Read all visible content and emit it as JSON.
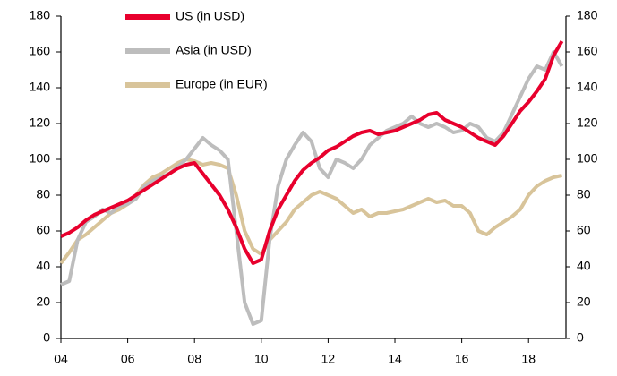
{
  "chart_data": {
    "type": "line",
    "x": [
      2004,
      2004.25,
      2004.5,
      2004.75,
      2005,
      2005.25,
      2005.5,
      2005.75,
      2006,
      2006.25,
      2006.5,
      2006.75,
      2007,
      2007.25,
      2007.5,
      2007.75,
      2008,
      2008.25,
      2008.5,
      2008.75,
      2009,
      2009.25,
      2009.5,
      2009.75,
      2010,
      2010.25,
      2010.5,
      2010.75,
      2011,
      2011.25,
      2011.5,
      2011.75,
      2012,
      2012.25,
      2012.5,
      2012.75,
      2013,
      2013.25,
      2013.5,
      2013.75,
      2014,
      2014.25,
      2014.5,
      2014.75,
      2015,
      2015.25,
      2015.5,
      2015.75,
      2016,
      2016.25,
      2016.5,
      2016.75,
      2017,
      2017.25,
      2017.5,
      2017.75,
      2018,
      2018.25,
      2018.5,
      2018.75,
      2019
    ],
    "series": [
      {
        "name": "US (in USD)",
        "color": "#e8002d",
        "values": [
          57,
          59,
          62,
          66,
          69,
          71,
          73,
          75,
          77,
          80,
          83,
          86,
          89,
          92,
          95,
          97,
          98,
          92,
          86,
          80,
          72,
          62,
          50,
          42,
          44,
          60,
          72,
          80,
          88,
          94,
          98,
          101,
          105,
          107,
          110,
          113,
          115,
          116,
          114,
          115,
          116,
          118,
          120,
          122,
          125,
          126,
          122,
          120,
          118,
          115,
          112,
          110,
          108,
          113,
          120,
          127,
          132,
          138,
          145,
          158,
          166
        ]
      },
      {
        "name": "Asia (in USD)",
        "color": "#bdbdbd",
        "values": [
          30,
          32,
          55,
          65,
          68,
          72,
          70,
          74,
          75,
          78,
          85,
          88,
          90,
          92,
          96,
          100,
          106,
          112,
          108,
          105,
          100,
          60,
          20,
          8,
          10,
          55,
          85,
          100,
          108,
          115,
          110,
          95,
          90,
          100,
          98,
          95,
          100,
          108,
          112,
          116,
          118,
          120,
          124,
          120,
          118,
          120,
          118,
          115,
          116,
          120,
          118,
          112,
          110,
          115,
          125,
          135,
          145,
          152,
          150,
          160,
          152
        ]
      },
      {
        "name": "Europe (in EUR)",
        "color": "#d8c49a",
        "values": [
          42,
          48,
          55,
          58,
          62,
          66,
          70,
          72,
          75,
          80,
          86,
          90,
          92,
          95,
          98,
          100,
          99,
          97,
          98,
          97,
          95,
          80,
          60,
          50,
          47,
          55,
          60,
          65,
          72,
          76,
          80,
          82,
          80,
          78,
          74,
          70,
          72,
          68,
          70,
          70,
          71,
          72,
          74,
          76,
          78,
          76,
          77,
          74,
          74,
          70,
          60,
          58,
          62,
          65,
          68,
          72,
          80,
          85,
          88,
          90,
          91
        ]
      }
    ],
    "xlim": [
      2004,
      2019.12
    ],
    "xticks": [
      {
        "value": 2004,
        "label": "04"
      },
      {
        "value": 2006,
        "label": "06"
      },
      {
        "value": 2008,
        "label": "08"
      },
      {
        "value": 2010,
        "label": "10"
      },
      {
        "value": 2012,
        "label": "12"
      },
      {
        "value": 2014,
        "label": "14"
      },
      {
        "value": 2016,
        "label": "16"
      },
      {
        "value": 2018,
        "label": "18"
      }
    ],
    "ylim": [
      0,
      180
    ],
    "yticks": [
      0,
      20,
      40,
      60,
      80,
      100,
      120,
      140,
      160,
      180
    ],
    "y2lim": [
      0,
      180
    ],
    "y2ticks": [
      0,
      20,
      40,
      60,
      80,
      100,
      120,
      140,
      160,
      180
    ],
    "legend": "upper left"
  }
}
